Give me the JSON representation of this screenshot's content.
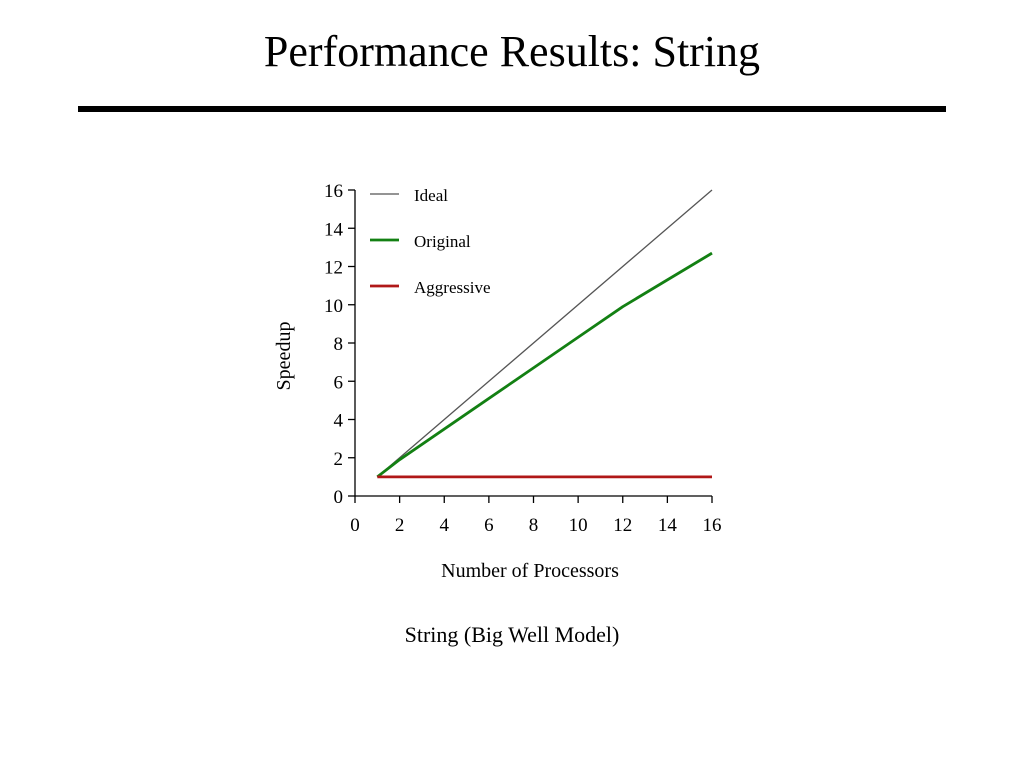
{
  "slide": {
    "title": "Performance Results: String",
    "caption": "String (Big Well Model)"
  },
  "chart_data": {
    "type": "line",
    "title": "",
    "xlabel": "Number of Processors",
    "ylabel": "Speedup",
    "xlim": [
      0,
      16
    ],
    "ylim": [
      0,
      16
    ],
    "xticks": [
      0,
      2,
      4,
      6,
      8,
      10,
      12,
      14,
      16
    ],
    "yticks": [
      0,
      2,
      4,
      6,
      8,
      10,
      12,
      14,
      16
    ],
    "grid": false,
    "legend": "top-left",
    "series": [
      {
        "name": "Ideal",
        "color": "#555555",
        "x": [
          1,
          16
        ],
        "y": [
          1,
          16
        ]
      },
      {
        "name": "Original",
        "color": "#138013",
        "x": [
          1,
          2,
          4,
          6,
          8,
          10,
          12,
          14,
          16
        ],
        "y": [
          1,
          1.9,
          3.5,
          5.1,
          6.7,
          8.3,
          9.9,
          11.3,
          12.7
        ]
      },
      {
        "name": "Aggressive",
        "color": "#b01818",
        "x": [
          1,
          2,
          4,
          6,
          8,
          10,
          12,
          14,
          16
        ],
        "y": [
          1,
          1,
          1,
          1,
          1,
          1,
          1,
          1,
          1
        ]
      }
    ]
  }
}
